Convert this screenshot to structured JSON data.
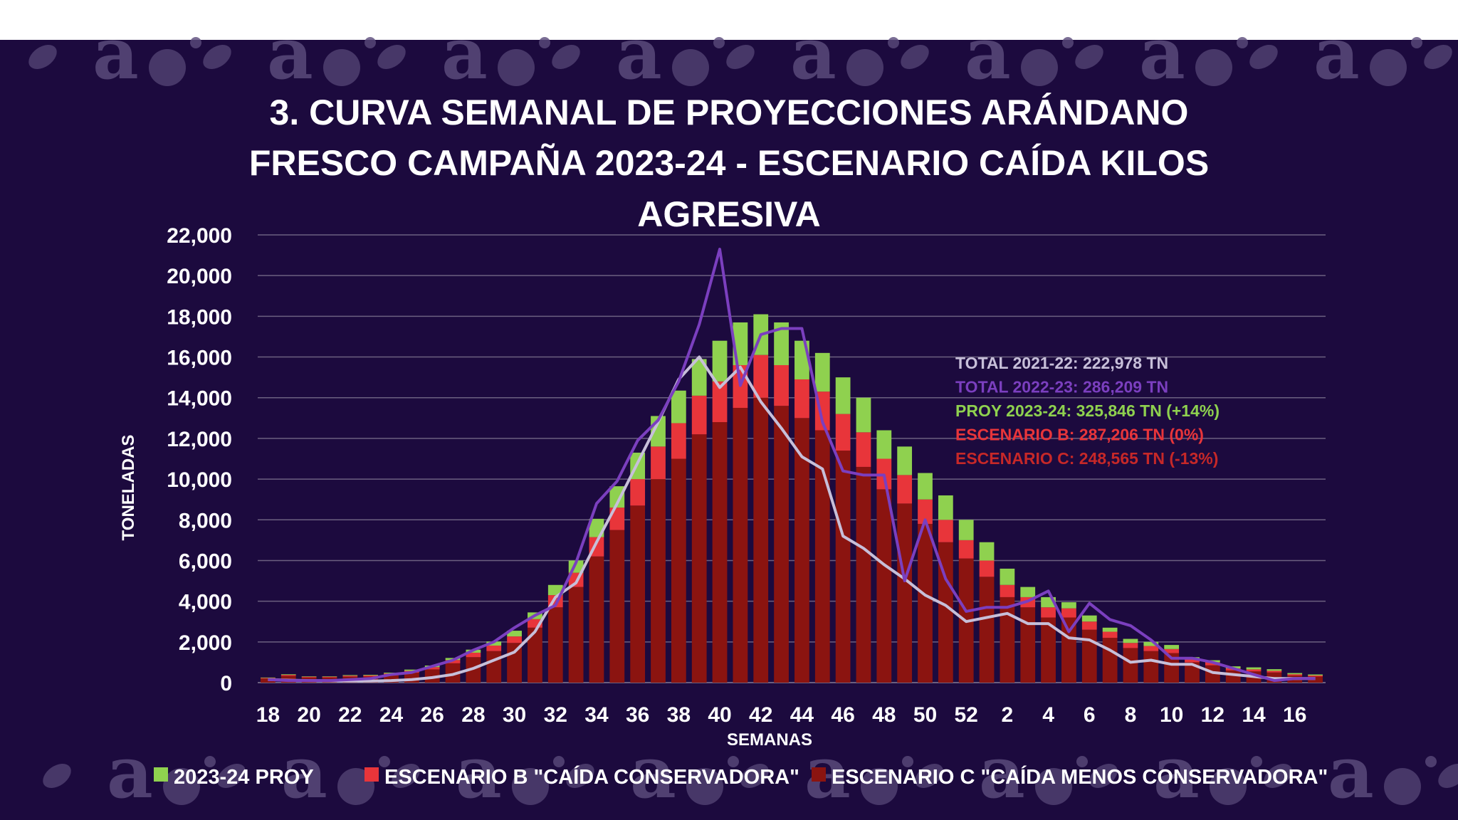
{
  "chart_data": {
    "type": "bar",
    "stacked": true,
    "title": "3. CURVA SEMANAL DE PROYECCIONES ARÁNDANO FRESCO CAMPAÑA 2023-24 - ESCENARIO CAÍDA KILOS AGRESIVA",
    "title_lines": [
      "3. CURVA SEMANAL DE PROYECCIONES ARÁNDANO",
      "FRESCO CAMPAÑA 2023-24 - ESCENARIO CAÍDA KILOS",
      "AGRESIVA"
    ],
    "ylabel": "TONELADAS",
    "xlabel": "SEMANAS",
    "ylim": [
      0,
      22000
    ],
    "y_ticks": [
      "0",
      "2,000",
      "4,000",
      "6,000",
      "8,000",
      "10,000",
      "12,000",
      "14,000",
      "16,000",
      "18,000",
      "20,000",
      "22,000"
    ],
    "grid": true,
    "legend_position": "bottom",
    "categories": [
      "18",
      "19",
      "20",
      "21",
      "22",
      "23",
      "24",
      "25",
      "26",
      "27",
      "28",
      "29",
      "30",
      "31",
      "32",
      "33",
      "34",
      "35",
      "36",
      "37",
      "38",
      "39",
      "40",
      "41",
      "42",
      "43",
      "44",
      "45",
      "46",
      "47",
      "48",
      "49",
      "50",
      "51",
      "52",
      "1",
      "2",
      "3",
      "4",
      "5",
      "6",
      "7",
      "8",
      "9",
      "10",
      "11",
      "12",
      "13",
      "14",
      "15",
      "16",
      "17"
    ],
    "tick_labels": [
      "18",
      "20",
      "22",
      "24",
      "26",
      "28",
      "30",
      "32",
      "34",
      "36",
      "38",
      "40",
      "42",
      "44",
      "46",
      "48",
      "50",
      "52",
      "2",
      "4",
      "6",
      "8",
      "10",
      "12",
      "14",
      "16"
    ],
    "series": [
      {
        "name": "ESCENARIO C \"CAÍDA MENOS CONSERVADORA\"",
        "color": "#8b1410",
        "values": [
          200,
          330,
          250,
          250,
          290,
          300,
          380,
          490,
          650,
          950,
          1250,
          1550,
          1950,
          2700,
          3700,
          4700,
          6200,
          7500,
          8700,
          10000,
          11000,
          12200,
          12800,
          13500,
          14000,
          13600,
          13000,
          12400,
          11400,
          10600,
          9500,
          8800,
          7800,
          6900,
          6100,
          5200,
          4200,
          3700,
          3200,
          3200,
          2600,
          2200,
          1700,
          1550,
          1450,
          1000,
          850,
          600,
          550,
          500,
          350,
          300
        ]
      },
      {
        "name": "ESCENARIO B \"CAÍDA CONSERVADORA\"",
        "color": "#e8353a",
        "values": [
          30,
          50,
          40,
          40,
          50,
          50,
          70,
          90,
          110,
          160,
          220,
          270,
          320,
          420,
          600,
          700,
          950,
          1100,
          1300,
          1600,
          1750,
          1900,
          2000,
          2100,
          2100,
          2000,
          1900,
          1900,
          1800,
          1700,
          1500,
          1400,
          1200,
          1100,
          900,
          800,
          600,
          500,
          500,
          450,
          400,
          300,
          250,
          250,
          200,
          150,
          150,
          100,
          100,
          80,
          60,
          50
        ]
      },
      {
        "name": "2023-24 PROY",
        "color": "#8fd14f",
        "values": [
          20,
          30,
          20,
          20,
          30,
          30,
          40,
          60,
          80,
          100,
          150,
          200,
          280,
          330,
          500,
          600,
          900,
          1050,
          1300,
          1500,
          1600,
          1800,
          2000,
          2100,
          2000,
          2100,
          1900,
          1900,
          1800,
          1700,
          1400,
          1400,
          1300,
          1200,
          1000,
          900,
          800,
          500,
          500,
          300,
          300,
          200,
          200,
          200,
          200,
          100,
          100,
          100,
          100,
          80,
          60,
          50
        ]
      }
    ],
    "lines": [
      {
        "name": "TOTAL 2021-22",
        "color": "#c7bfd9",
        "values": [
          150,
          120,
          100,
          90,
          80,
          80,
          100,
          150,
          250,
          400,
          700,
          1100,
          1500,
          2500,
          4200,
          4900,
          6900,
          8800,
          10800,
          12800,
          14900,
          16000,
          14500,
          15500,
          13800,
          12500,
          11100,
          10500,
          7200,
          6600,
          5800,
          5100,
          4300,
          3800,
          3000,
          3200,
          3400,
          2900,
          2900,
          2200,
          2100,
          1600,
          1000,
          1100,
          900,
          900,
          500,
          400,
          300,
          200,
          200,
          200
        ]
      },
      {
        "name": "TOTAL 2022-23",
        "color": "#7b3fbf",
        "values": [
          150,
          100,
          100,
          100,
          150,
          200,
          400,
          500,
          800,
          1100,
          1600,
          2000,
          2700,
          3300,
          3800,
          5900,
          8800,
          9900,
          11900,
          12900,
          14800,
          17600,
          21300,
          14600,
          17100,
          17400,
          17400,
          12800,
          10400,
          10200,
          10200,
          5000,
          8000,
          5100,
          3500,
          3700,
          3700,
          4000,
          4500,
          2500,
          3900,
          3100,
          2800,
          2100,
          1200,
          1200,
          1000,
          700,
          400,
          100,
          200,
          200
        ]
      }
    ],
    "annotations": [
      {
        "text": "TOTAL 2021-22: 222,978 TN",
        "color": "#c7bfd9"
      },
      {
        "text": "TOTAL 2022-23: 286,209 TN",
        "color": "#7b3fbf"
      },
      {
        "text": "PROY 2023-24: 325,846 TN (+14%)",
        "color": "#8fd14f"
      },
      {
        "text": "ESCENARIO B: 287,206 TN (0%)",
        "color": "#e8353a"
      },
      {
        "text": "ESCENARIO C: 248,565 TN (-13%)",
        "color": "#c62828"
      }
    ],
    "legend": [
      {
        "label": "2023-24 PROY",
        "color": "#8fd14f"
      },
      {
        "label": "ESCENARIO B \"CAÍDA CONSERVADORA\"",
        "color": "#e8353a"
      },
      {
        "label": "ESCENARIO C \"CAÍDA MENOS CONSERVADORA\"",
        "color": "#8b1410"
      }
    ]
  },
  "theme": {
    "background": "#1c0a3e",
    "gridline": "#6b6080",
    "watermark": "#5a4a7a",
    "watermark_icons": [
      "letter-a-logo",
      "leaf-icon",
      "blueberry-icon"
    ]
  }
}
